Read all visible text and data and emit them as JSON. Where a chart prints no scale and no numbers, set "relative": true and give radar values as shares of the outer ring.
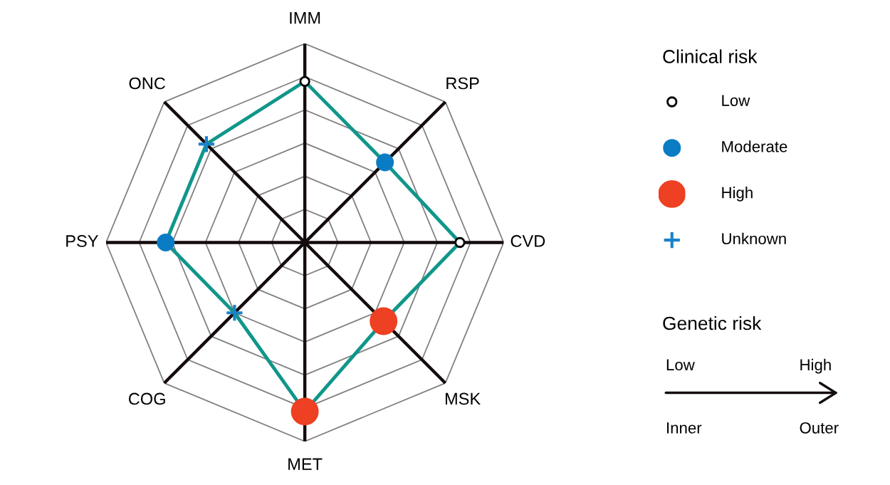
{
  "chart_data": {
    "type": "radar",
    "relative": true,
    "grid": true,
    "categories": [
      "IMM",
      "RSP",
      "CVD",
      "MSK",
      "MET",
      "COG",
      "PSY",
      "ONC"
    ],
    "series": [
      {
        "color": "#10968a",
        "values": [
          0.81,
          0.57,
          0.78,
          0.56,
          0.85,
          0.5,
          0.7,
          0.7
        ],
        "colors": [
          "#ffffff",
          "#0a7cc4",
          "#ffffff",
          "#ee4022",
          "#ee4022",
          "#1b82c8",
          "#0a7cc4",
          "#1b82c8"
        ]
      }
    ],
    "annotations": [
      "Clinical risk",
      "Low",
      "Moderate",
      "High",
      "Unknown",
      "Genetic risk",
      "Low",
      "High",
      "Inner",
      "Outer"
    ]
  }
}
